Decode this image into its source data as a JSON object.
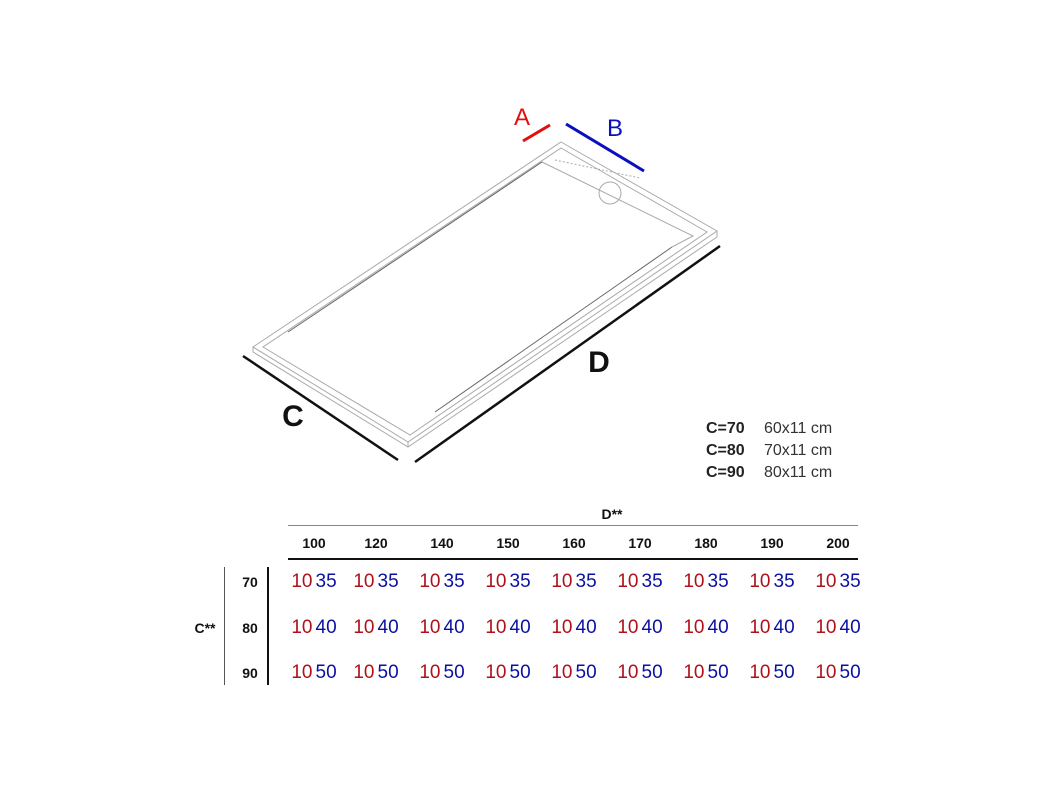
{
  "diagram": {
    "labels": {
      "a": "A",
      "b": "B",
      "c": "C",
      "d": "D"
    },
    "colors": {
      "a": "#e01010",
      "b": "#0a10c0",
      "outline": "#999999"
    },
    "drain_icon": "circle"
  },
  "legend": [
    {
      "key": "C=70",
      "value": "60x11 cm"
    },
    {
      "key": "C=80",
      "value": "70x11 cm"
    },
    {
      "key": "C=90",
      "value": "80x11 cm"
    }
  ],
  "table": {
    "column_title": "D**",
    "row_title": "C**",
    "columns": [
      "100",
      "120",
      "140",
      "150",
      "160",
      "170",
      "180",
      "190",
      "200"
    ],
    "rows": [
      {
        "label": "70",
        "cells": [
          [
            "10",
            "35"
          ],
          [
            "10",
            "35"
          ],
          [
            "10",
            "35"
          ],
          [
            "10",
            "35"
          ],
          [
            "10",
            "35"
          ],
          [
            "10",
            "35"
          ],
          [
            "10",
            "35"
          ],
          [
            "10",
            "35"
          ],
          [
            "10",
            "35"
          ]
        ]
      },
      {
        "label": "80",
        "cells": [
          [
            "10",
            "40"
          ],
          [
            "10",
            "40"
          ],
          [
            "10",
            "40"
          ],
          [
            "10",
            "40"
          ],
          [
            "10",
            "40"
          ],
          [
            "10",
            "40"
          ],
          [
            "10",
            "40"
          ],
          [
            "10",
            "40"
          ],
          [
            "10",
            "40"
          ]
        ]
      },
      {
        "label": "90",
        "cells": [
          [
            "10",
            "50"
          ],
          [
            "10",
            "50"
          ],
          [
            "10",
            "50"
          ],
          [
            "10",
            "50"
          ],
          [
            "10",
            "50"
          ],
          [
            "10",
            "50"
          ],
          [
            "10",
            "50"
          ],
          [
            "10",
            "50"
          ],
          [
            "10",
            "50"
          ]
        ]
      }
    ],
    "colors": {
      "a_value": "#b0101a",
      "b_value": "#0a10a0"
    }
  }
}
